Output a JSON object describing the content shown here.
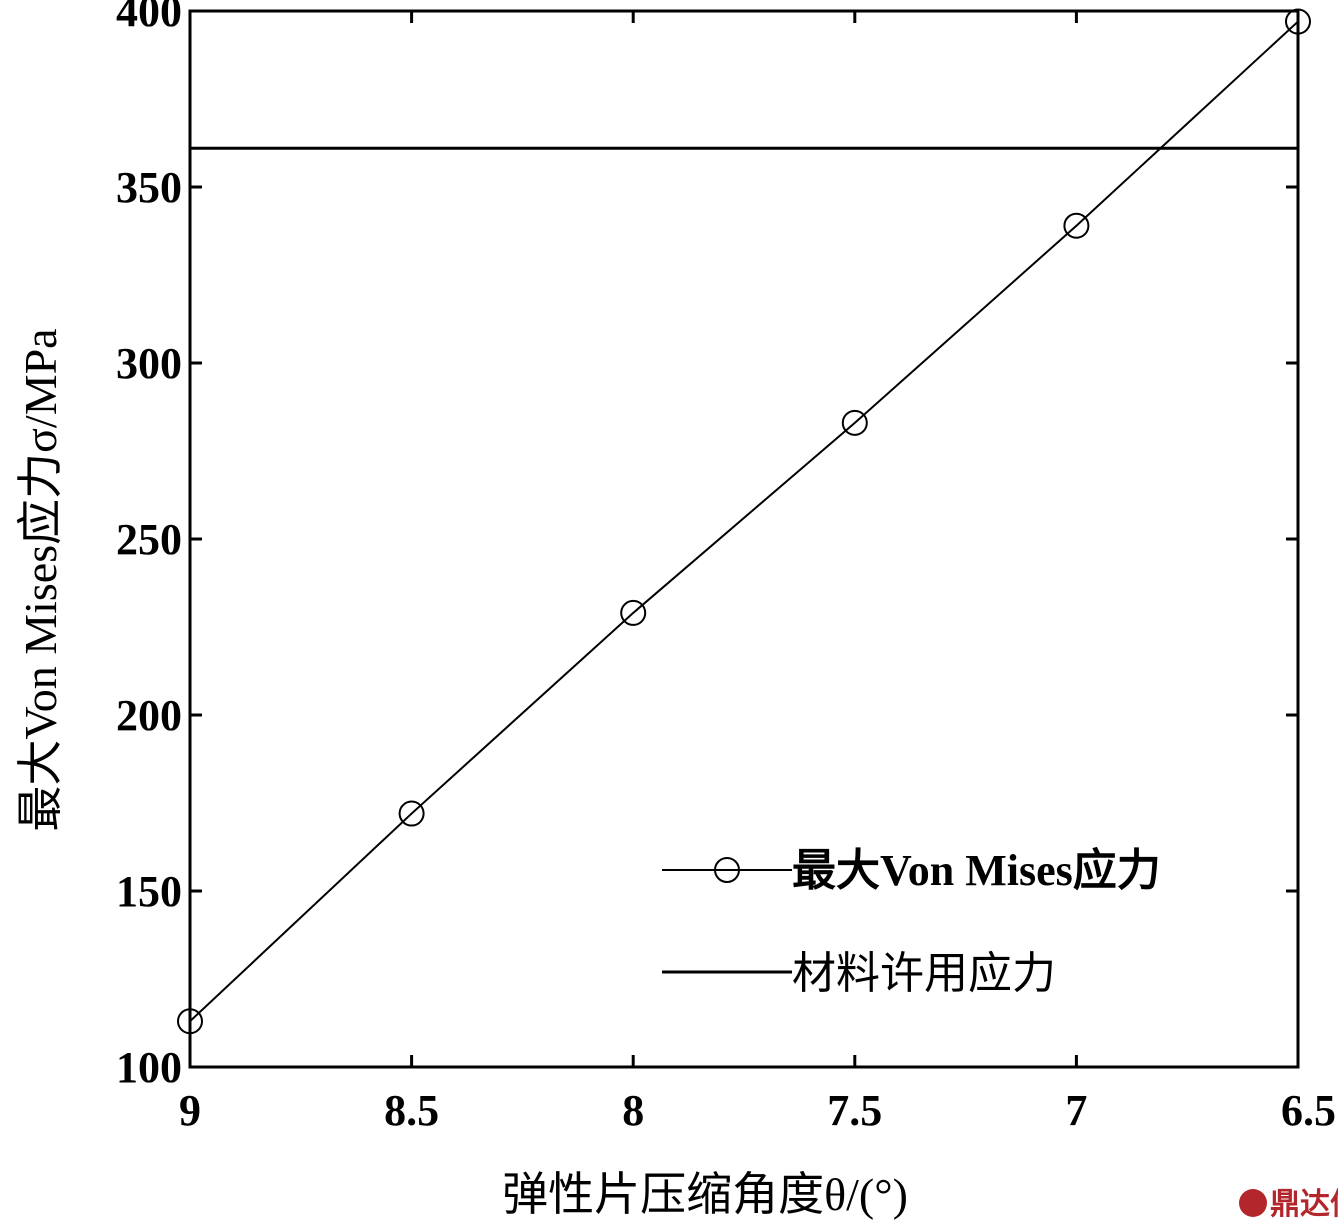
{
  "chart_data": {
    "type": "line",
    "xlabel": "弹性片压缩角度θ/(°)",
    "ylabel": "最大Von Mises应力σ/MPa",
    "xlim": [
      9,
      6.5
    ],
    "x_reversed": true,
    "ylim": [
      100,
      400
    ],
    "x_ticks": [
      "9",
      "8.5",
      "8",
      "7.5",
      "7",
      "6.5"
    ],
    "x_tick_values": [
      9,
      8.5,
      8,
      7.5,
      7,
      6.5
    ],
    "y_ticks": [
      "100",
      "150",
      "200",
      "250",
      "300",
      "350",
      "400"
    ],
    "y_tick_values": [
      100,
      150,
      200,
      250,
      300,
      350,
      400
    ],
    "grid": false,
    "legend_position": "bottom-right",
    "series": [
      {
        "name": "最大Von Mises应力",
        "marker": "circle",
        "x": [
          9,
          8.5,
          8,
          7.5,
          7,
          6.5
        ],
        "y": [
          113,
          172,
          229,
          283,
          339,
          397
        ]
      },
      {
        "name": "材料许用应力",
        "marker": "none",
        "x": [
          9,
          6.5
        ],
        "y": [
          361,
          361
        ]
      }
    ]
  },
  "watermark": {
    "text": "鼎达信",
    "color": "#b3262b"
  }
}
